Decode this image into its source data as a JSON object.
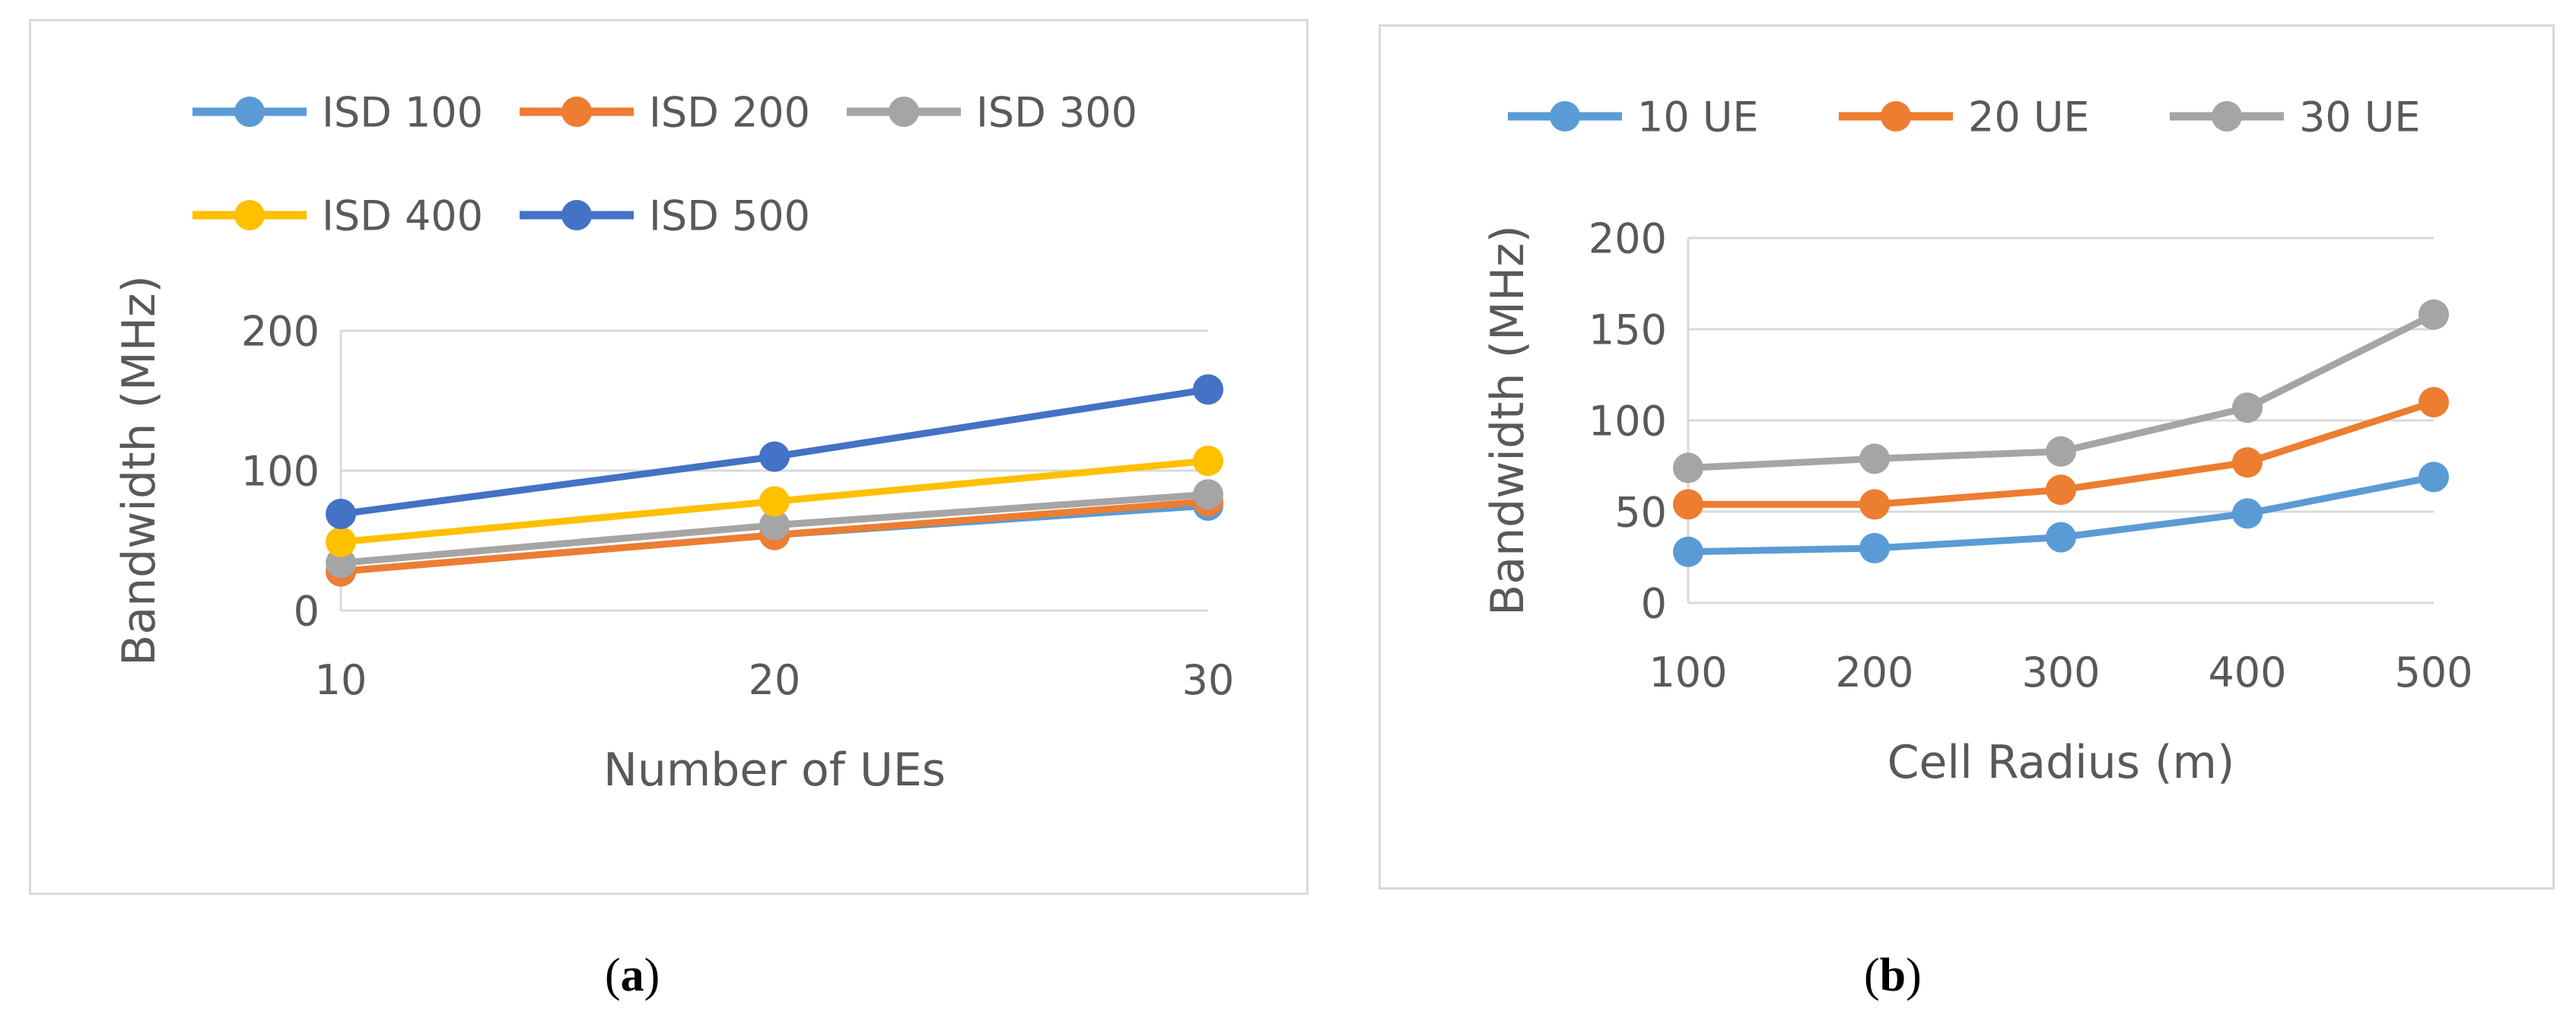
{
  "chart_data": [
    {
      "id": "a",
      "type": "line",
      "caption": "a",
      "xlabel": "Number of UEs",
      "ylabel": "Bandwidth (MHz)",
      "categories": [
        "10",
        "20",
        "30"
      ],
      "ylim": [
        0,
        200
      ],
      "yticks": [
        "0",
        "100",
        "200"
      ],
      "grid": true,
      "legend": "top",
      "series": [
        {
          "name": "ISD 100",
          "color": "#5b9bd5",
          "values": [
            28,
            54,
            75
          ]
        },
        {
          "name": "ISD 200",
          "color": "#ed7d31",
          "values": [
            28,
            54,
            78
          ]
        },
        {
          "name": "ISD 300",
          "color": "#a5a5a5",
          "values": [
            34,
            61,
            83
          ]
        },
        {
          "name": "ISD 400",
          "color": "#ffc000",
          "values": [
            49,
            78,
            107
          ]
        },
        {
          "name": "ISD 500",
          "color": "#4472c4",
          "values": [
            69,
            110,
            158
          ]
        }
      ]
    },
    {
      "id": "b",
      "type": "line",
      "caption": "b",
      "xlabel": "Cell Radius (m)",
      "ylabel": "Bandwidth (MHz)",
      "categories": [
        "100",
        "200",
        "300",
        "400",
        "500"
      ],
      "ylim": [
        0,
        200
      ],
      "yticks": [
        "0",
        "50",
        "100",
        "150",
        "200"
      ],
      "grid": true,
      "legend": "top",
      "series": [
        {
          "name": "10 UE",
          "color": "#5b9bd5",
          "values": [
            28,
            30,
            36,
            49,
            69
          ]
        },
        {
          "name": "20 UE",
          "color": "#ed7d31",
          "values": [
            54,
            54,
            62,
            77,
            110
          ]
        },
        {
          "name": "30 UE",
          "color": "#a5a5a5",
          "values": [
            74,
            79,
            83,
            107,
            158
          ]
        }
      ]
    }
  ]
}
